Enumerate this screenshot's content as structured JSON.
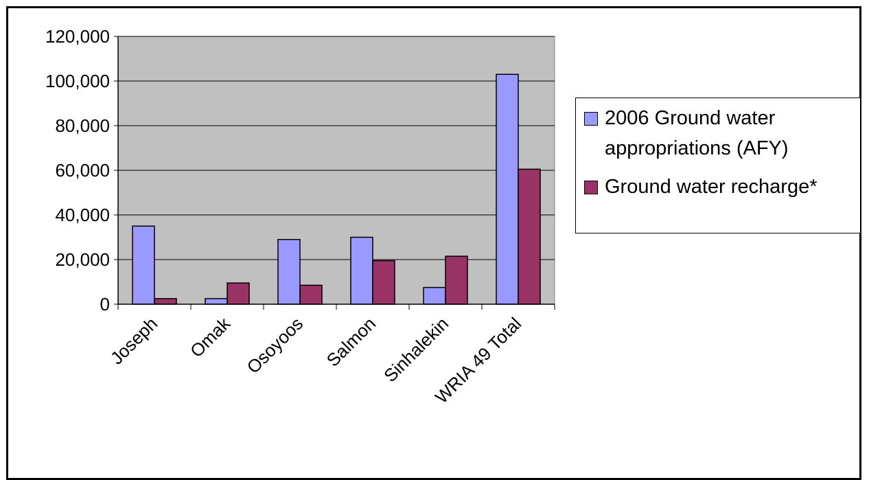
{
  "chart_data": {
    "type": "bar",
    "categories": [
      "Joseph",
      "Omak",
      "Osoyoos",
      "Salmon",
      "Sinhalekin",
      "WRIA 49 Total"
    ],
    "series": [
      {
        "name": "2006 Ground water appropriations (AFY)",
        "values": [
          35000,
          2500,
          29000,
          30000,
          7500,
          103000
        ],
        "color": "#9999ff"
      },
      {
        "name": "Ground water recharge*",
        "values": [
          2500,
          9500,
          8500,
          19500,
          21500,
          60500
        ],
        "color": "#993366"
      }
    ],
    "ylim": [
      0,
      120000
    ],
    "yticks": [
      "0",
      "20,000",
      "40,000",
      "60,000",
      "80,000",
      "100,000",
      "120,000"
    ],
    "ytick_values": [
      0,
      20000,
      40000,
      60000,
      80000,
      100000,
      120000
    ],
    "grid": true,
    "plot_background": "#c0c0c0",
    "legend_position": "right",
    "title": "",
    "xlabel": "",
    "ylabel": ""
  }
}
